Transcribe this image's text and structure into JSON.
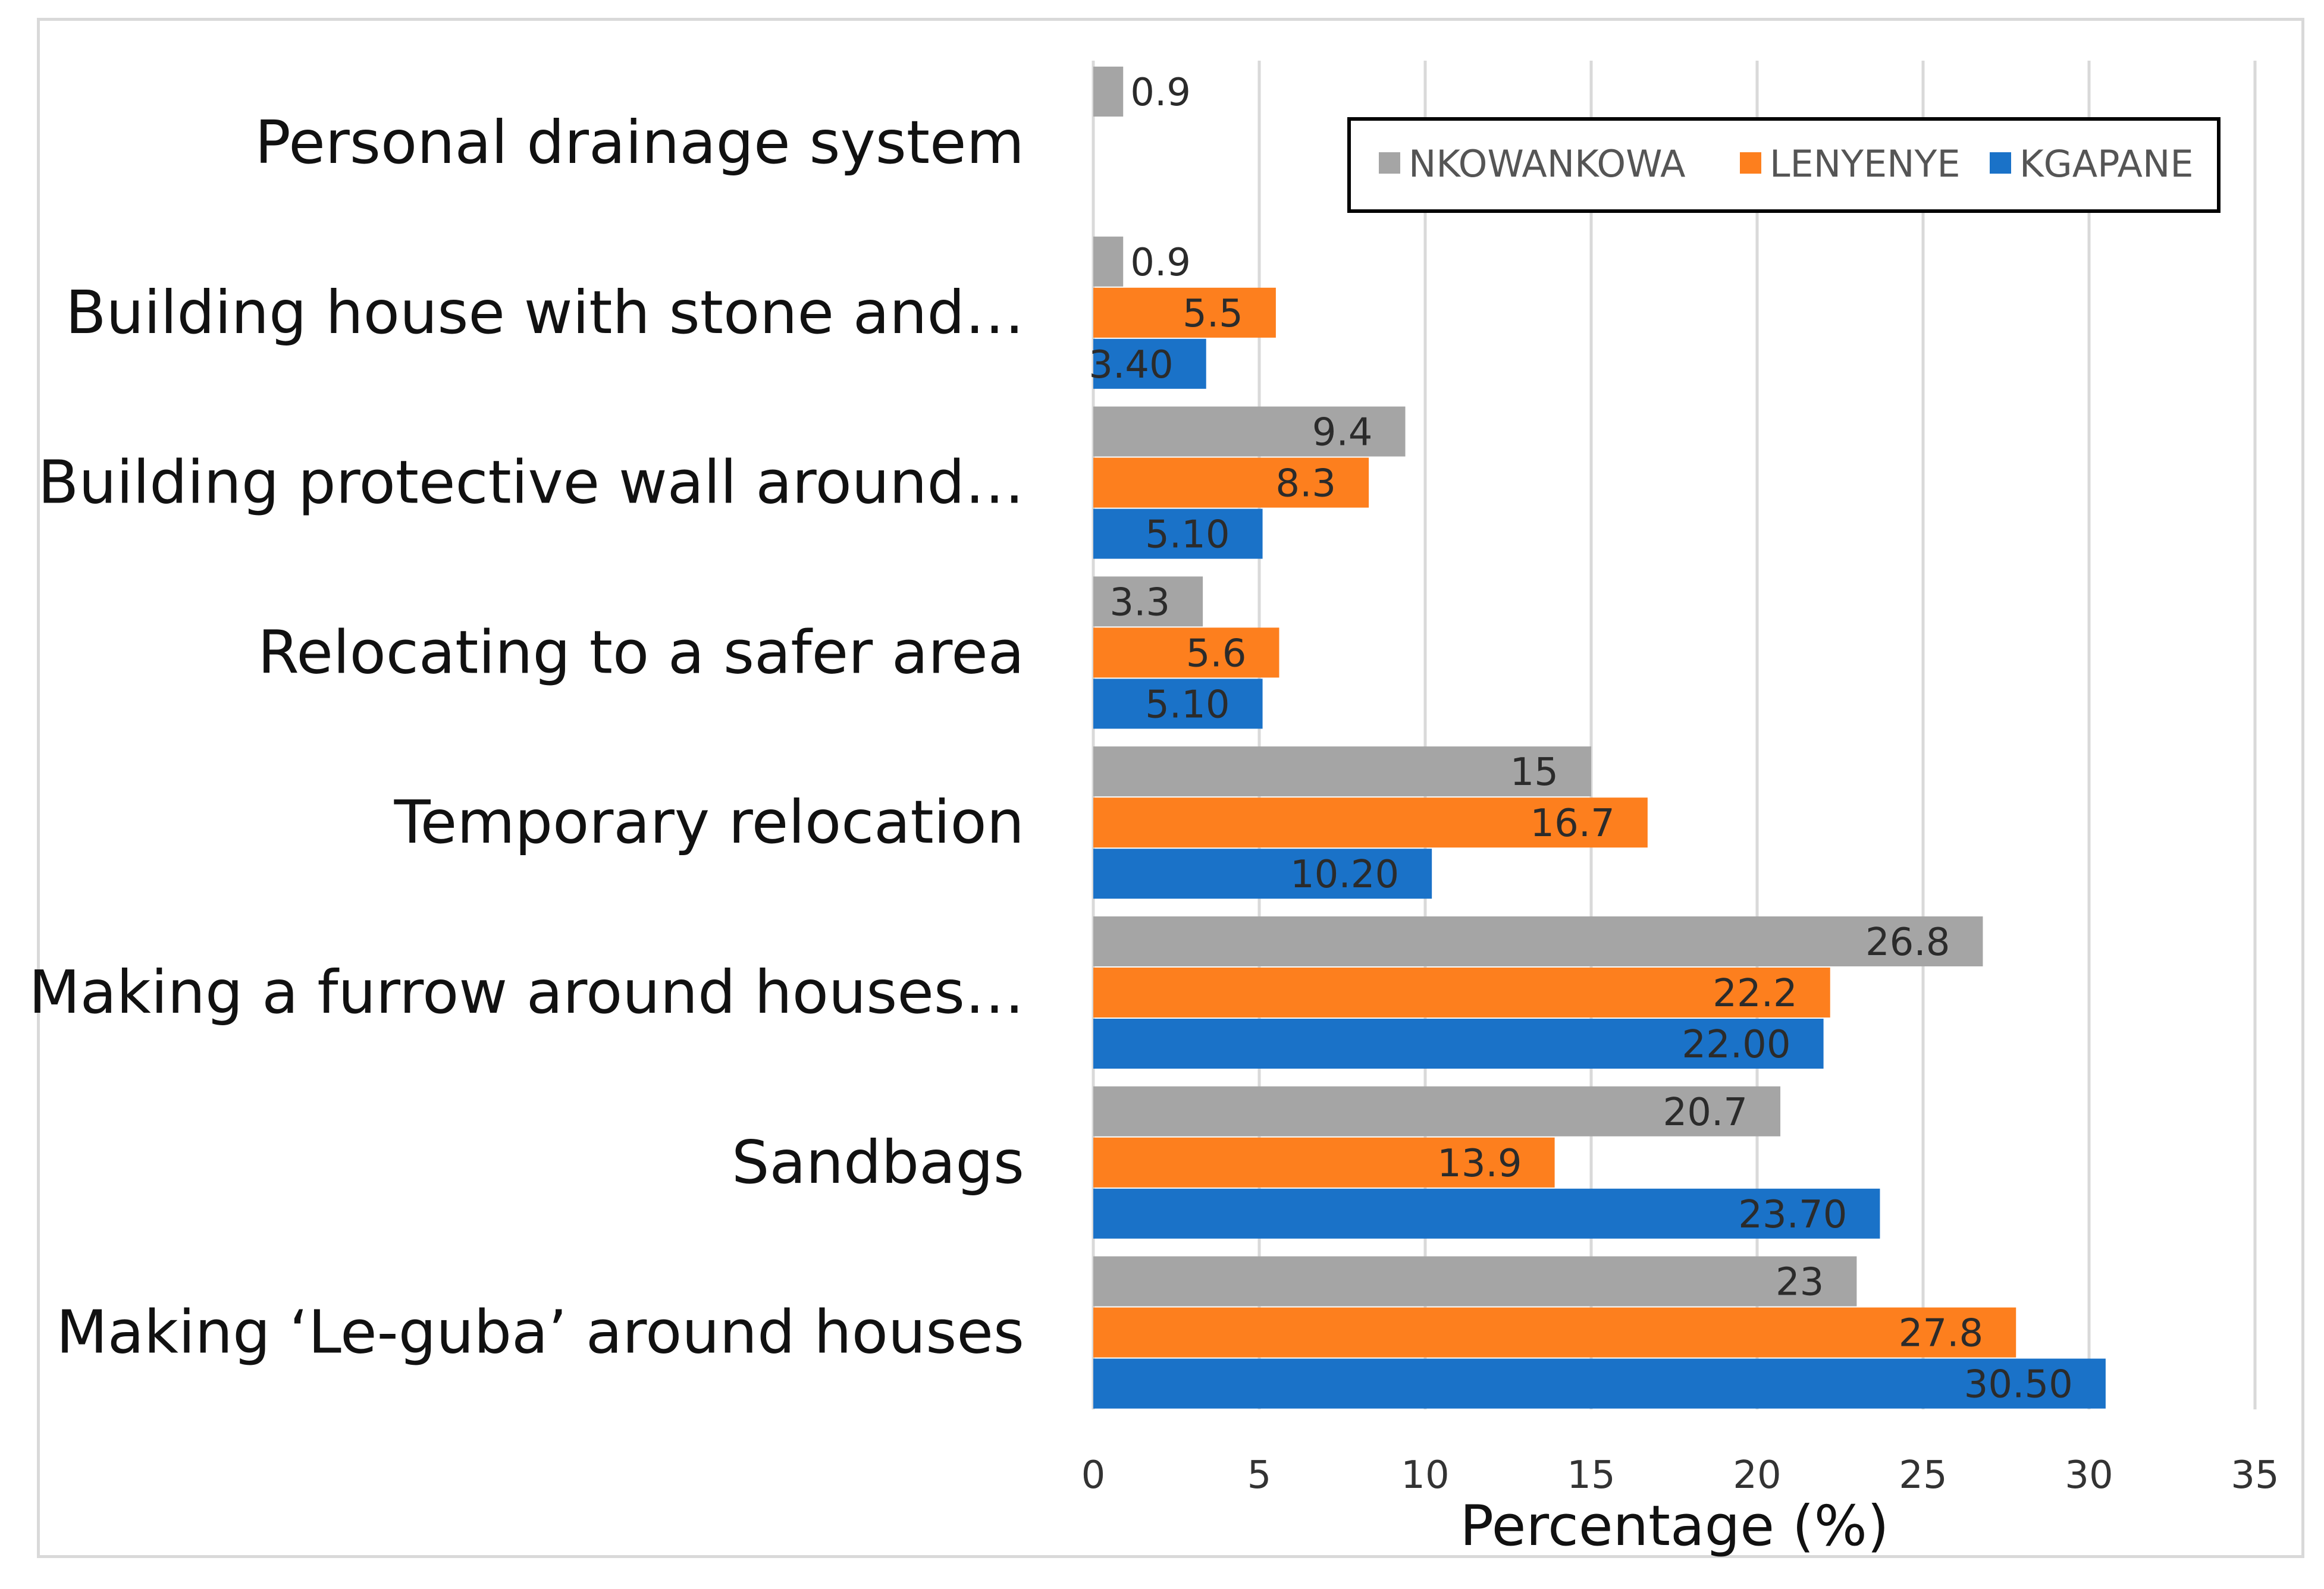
{
  "chart_data": {
    "type": "bar",
    "orientation": "horizontal",
    "categories": [
      "Personal drainage system",
      "Building house with stone and…",
      "Building protective wall around…",
      "Relocating to a safer area",
      "Temporary relocation",
      "Making a furrow around houses…",
      "Sandbags",
      "Making ‘Le-guba’ around houses"
    ],
    "series": [
      {
        "name": "NKOWANKOWA",
        "color": "#a5a5a5",
        "values": [
          0.9,
          0.9,
          9.4,
          3.3,
          15,
          26.8,
          20.7,
          23
        ],
        "labels": [
          "0.9",
          "0.9",
          "9.4",
          "3.3",
          "15",
          "26.8",
          "20.7",
          "23"
        ]
      },
      {
        "name": "LENYENYE",
        "color": "#fd7f1e",
        "values": [
          null,
          5.5,
          8.3,
          5.6,
          16.7,
          22.2,
          13.9,
          27.8
        ],
        "labels": [
          null,
          "5.5",
          "8.3",
          "5.6",
          "16.7",
          "22.2",
          "13.9",
          "27.8"
        ]
      },
      {
        "name": "KGAPANE",
        "color": "#1a72c8",
        "values": [
          null,
          3.4,
          5.1,
          5.1,
          10.2,
          22.0,
          23.7,
          30.5
        ],
        "labels": [
          null,
          "3.40",
          "5.10",
          "5.10",
          "10.20",
          "22.00",
          "23.70",
          "30.50"
        ]
      }
    ],
    "title": "",
    "xlabel": "Percentage (%)",
    "ylabel": "",
    "xlim": [
      0,
      35
    ],
    "xticks": [
      0,
      5,
      10,
      15,
      20,
      25,
      30,
      35
    ],
    "xtick_labels": [
      "0",
      "5",
      "10",
      "15",
      "20",
      "25",
      "30",
      "35"
    ],
    "grid": true,
    "legend_position": "top-right"
  }
}
